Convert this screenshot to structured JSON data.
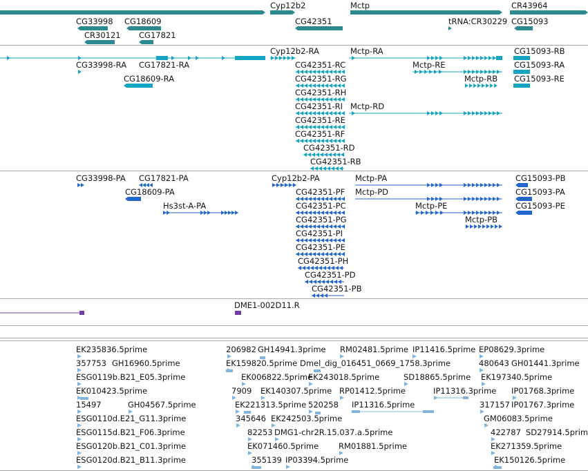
{
  "colors": {
    "gene": "#2a8a90",
    "transcript": "#12a4c0",
    "protein": "#2266cc",
    "clone": "#7040a0",
    "est": "#80b4dc",
    "separator": "#a8a8a8",
    "text": "#141414"
  },
  "tracks": {
    "genes": {
      "features": [
        {
          "label": "Cyp12b2"
        },
        {
          "label": "Mctp"
        },
        {
          "label": "CR43964"
        },
        {
          "label": "CG33998"
        },
        {
          "label": "CG18609"
        },
        {
          "label": "CG42351"
        },
        {
          "label": "tRNA:CR30229"
        },
        {
          "label": "CG15093"
        },
        {
          "label": "CR30121"
        },
        {
          "label": "CG17821"
        }
      ]
    },
    "transcripts": {
      "features": [
        {
          "label": "Cyp12b2-RA"
        },
        {
          "label": "Mctp-RA"
        },
        {
          "label": "CG15093-RB"
        },
        {
          "label": "CG33998-RA"
        },
        {
          "label": "CG17821-RA"
        },
        {
          "label": "CG42351-RC"
        },
        {
          "label": "Mctp-RE"
        },
        {
          "label": "CG15093-RA"
        },
        {
          "label": "CG18609-RA"
        },
        {
          "label": "CG42351-RG"
        },
        {
          "label": "Mctp-RB"
        },
        {
          "label": "CG15093-RE"
        },
        {
          "label": "CG42351-RH"
        },
        {
          "label": "CG42351-RI"
        },
        {
          "label": "Mctp-RD"
        },
        {
          "label": "CG42351-RE"
        },
        {
          "label": "CG42351-RF"
        },
        {
          "label": "CG42351-RD"
        },
        {
          "label": "CG42351-RB"
        }
      ]
    },
    "proteins": {
      "features": [
        {
          "label": "CG33998-PA"
        },
        {
          "label": "CG17821-PA"
        },
        {
          "label": "Cyp12b2-PA"
        },
        {
          "label": "Mctp-PA"
        },
        {
          "label": "CG15093-PB"
        },
        {
          "label": "CG18609-PA"
        },
        {
          "label": "CG42351-PF"
        },
        {
          "label": "Mctp-PD"
        },
        {
          "label": "CG15093-PA"
        },
        {
          "label": "Hs3st-A-PA"
        },
        {
          "label": "CG42351-PC"
        },
        {
          "label": "Mctp-PE"
        },
        {
          "label": "CG15093-PE"
        },
        {
          "label": "CG42351-PG"
        },
        {
          "label": "Mctp-PB"
        },
        {
          "label": "CG42351-PI"
        },
        {
          "label": "CG42351-PE"
        },
        {
          "label": "CG42351-PH"
        },
        {
          "label": "CG42351-PD"
        },
        {
          "label": "CG42351-PB"
        }
      ]
    },
    "clones": {
      "features": [
        {
          "label": "DME1-002D11.R"
        }
      ]
    },
    "ests": {
      "features": [
        {
          "label": "EK235836.5prime"
        },
        {
          "label": "206982"
        },
        {
          "label": "GH14941.3prime"
        },
        {
          "label": "RM02481.5prime"
        },
        {
          "label": "IP11416.5prime"
        },
        {
          "label": "EP08629.3prime"
        },
        {
          "label": "357753"
        },
        {
          "label": "GH16960.5prime"
        },
        {
          "label": "EK159820.5prime"
        },
        {
          "label": "Dmel_dig_016451_0669_1758.3prime"
        },
        {
          "label": "480643"
        },
        {
          "label": "GH01441.3prime"
        },
        {
          "label": "ESG0119b.B21_E05.3prime"
        },
        {
          "label": "EK006822.5prime"
        },
        {
          "label": "EK243018.5prime"
        },
        {
          "label": "SD18865.5prime"
        },
        {
          "label": "EK197340.5prime"
        },
        {
          "label": "EK010423.5prime"
        },
        {
          "label": "7909"
        },
        {
          "label": "EK140307.5prime"
        },
        {
          "label": "RP01412.5prime"
        },
        {
          "label": "IP11316.3prime"
        },
        {
          "label": "IP01768.3prime"
        },
        {
          "label": "15497"
        },
        {
          "label": "GH04567.5prime"
        },
        {
          "label": "EK221313.5prime"
        },
        {
          "label": "520258"
        },
        {
          "label": "IP11316.5prime"
        },
        {
          "label": "317157"
        },
        {
          "label": "IP01767.3prime"
        },
        {
          "label": "ESG0110d.E21_G11.3prime"
        },
        {
          "label": "345646"
        },
        {
          "label": "EK242503.5prime"
        },
        {
          "label": "GM06083.5prime"
        },
        {
          "label": "ESG0115d.B21_F06.3prime"
        },
        {
          "label": "82253"
        },
        {
          "label": "DMG1-chr2R.15.037.a.5prime"
        },
        {
          "label": "422787"
        },
        {
          "label": "SD27914.5prime"
        },
        {
          "label": "ESG0120b.B21_C01.3prime"
        },
        {
          "label": "EK071460.5prime"
        },
        {
          "label": "RM01881.5prime"
        },
        {
          "label": "EK271359.5prime"
        },
        {
          "label": "ESG0120d.B21_B11.3prime"
        },
        {
          "label": "355139"
        },
        {
          "label": "IP03394.5prime"
        },
        {
          "label": "EK150126.5prime"
        }
      ]
    }
  }
}
